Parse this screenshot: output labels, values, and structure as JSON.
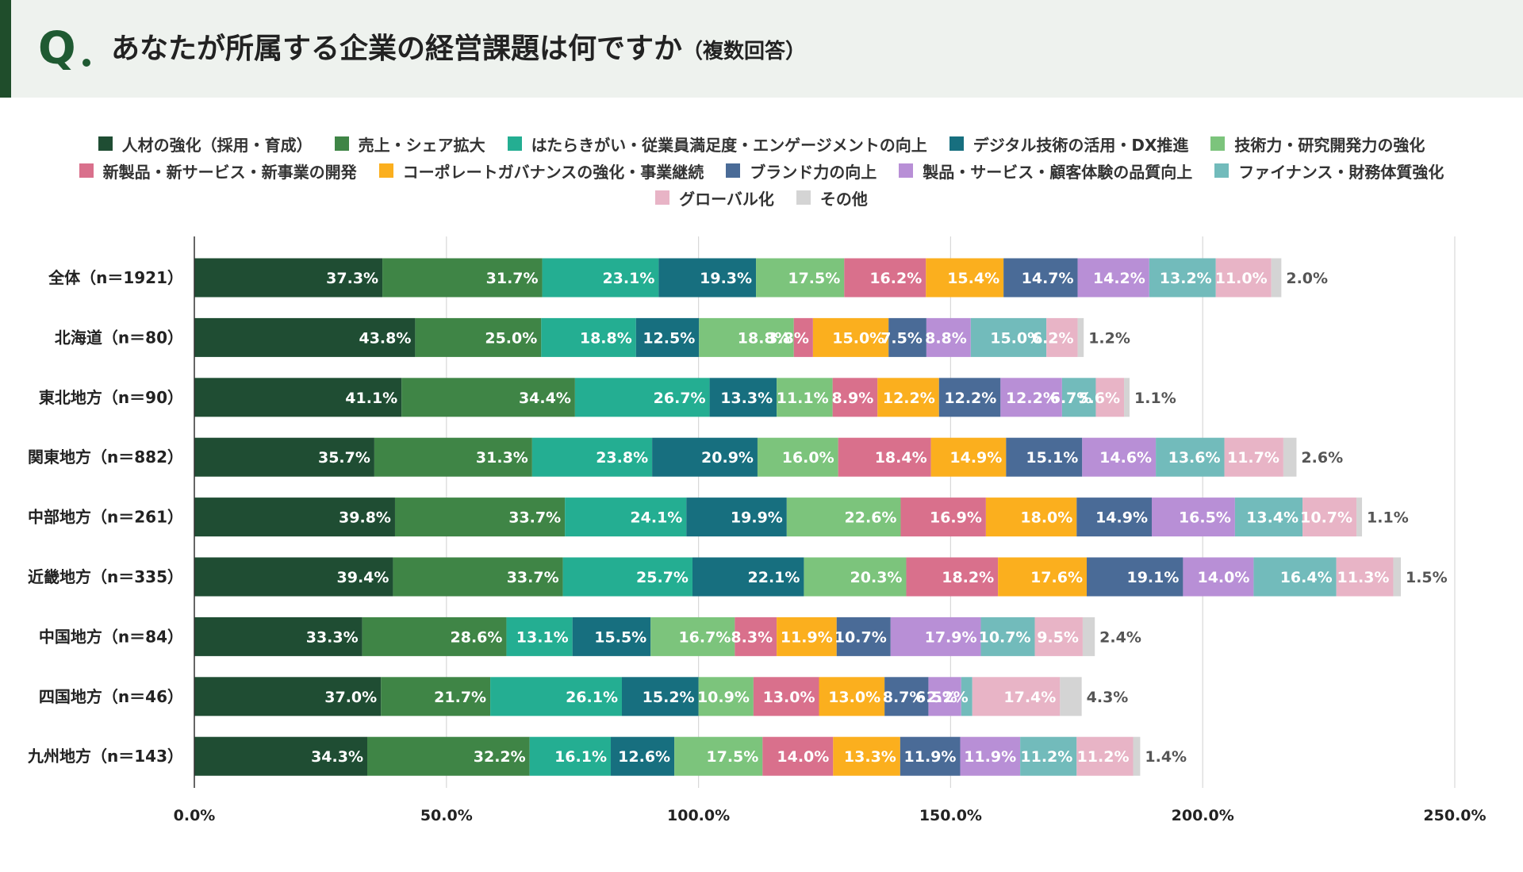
{
  "header": {
    "q_mark": "Q",
    "title": "あなたが所属する企業の経営課題は何ですか",
    "subtitle": "（複数回答）"
  },
  "chart_data": {
    "type": "bar",
    "orientation": "horizontal",
    "stacked": true,
    "title": "あなたが所属する企業の経営課題は何ですか（複数回答）",
    "xlabel": "",
    "ylabel": "",
    "xlim": [
      0,
      250
    ],
    "x_ticks": [
      0,
      50,
      100,
      150,
      200,
      250
    ],
    "x_tick_labels": [
      "0.0%",
      "50.0%",
      "100.0%",
      "150.0%",
      "200.0%",
      "250.0%"
    ],
    "grid": true,
    "legend_position": "top",
    "categories": [
      "全体（n＝1921）",
      "北海道（n＝80）",
      "東北地方（n＝90）",
      "関東地方（n＝882）",
      "中部地方（n＝261）",
      "近畿地方（n＝335）",
      "中国地方（n＝84）",
      "四国地方（n＝46）",
      "九州地方（n＝143）"
    ],
    "series": [
      {
        "name": "人材の強化（採用・育成）",
        "color": "#1f4d33",
        "label_color": "#ffffff",
        "values": [
          37.3,
          43.8,
          41.1,
          35.7,
          39.8,
          39.4,
          33.3,
          37.0,
          34.3
        ]
      },
      {
        "name": "売上・シェア拡大",
        "color": "#3f8546",
        "label_color": "#ffffff",
        "values": [
          31.7,
          25.0,
          34.4,
          31.3,
          33.7,
          33.7,
          28.6,
          21.7,
          32.2
        ]
      },
      {
        "name": "はたらきがい・従業員満足度・エンゲージメントの向上",
        "color": "#24ae92",
        "label_color": "#ffffff",
        "values": [
          23.1,
          18.8,
          26.7,
          23.8,
          24.1,
          25.7,
          13.1,
          26.1,
          16.1
        ]
      },
      {
        "name": "デジタル技術の活用・DX推進",
        "color": "#176f7f",
        "label_color": "#ffffff",
        "values": [
          19.3,
          12.5,
          13.3,
          20.9,
          19.9,
          22.1,
          15.5,
          15.2,
          12.6
        ]
      },
      {
        "name": "技術力・研究開発力の強化",
        "color": "#7cc47c",
        "label_color": "#ffffff",
        "values": [
          17.5,
          18.8,
          11.1,
          16.0,
          22.6,
          20.3,
          16.7,
          10.9,
          17.5
        ]
      },
      {
        "name": "新製品・新サービス・新事業の開発",
        "color": "#d9708c",
        "label_color": "#ffffff",
        "values": [
          16.2,
          3.8,
          8.9,
          18.4,
          16.9,
          18.2,
          8.3,
          13.0,
          14.0
        ]
      },
      {
        "name": "コーポレートガバナンスの強化・事業継続",
        "color": "#fbaf1e",
        "label_color": "#ffffff",
        "values": [
          15.4,
          15.0,
          12.2,
          14.9,
          18.0,
          17.6,
          11.9,
          13.0,
          13.3
        ]
      },
      {
        "name": "ブランド力の向上",
        "color": "#4a6b97",
        "label_color": "#ffffff",
        "values": [
          14.7,
          7.5,
          12.2,
          15.1,
          14.9,
          19.1,
          10.7,
          8.7,
          11.9
        ]
      },
      {
        "name": "製品・サービス・顧客体験の品質向上",
        "color": "#b88fd6",
        "label_color": "#ffffff",
        "values": [
          14.2,
          8.8,
          12.2,
          14.6,
          16.5,
          14.0,
          17.9,
          6.5,
          11.9
        ]
      },
      {
        "name": "ファイナンス・財務体質強化",
        "color": "#72bbbb",
        "label_color": "#ffffff",
        "values": [
          13.2,
          15.0,
          6.7,
          13.6,
          13.4,
          16.4,
          10.7,
          2.2,
          11.2
        ]
      },
      {
        "name": "グローバル化",
        "color": "#e8b4c6",
        "label_color": "#ffffff",
        "values": [
          11.0,
          6.2,
          5.6,
          11.7,
          10.7,
          11.3,
          9.5,
          17.4,
          11.2
        ]
      },
      {
        "name": "その他",
        "color": "#d4d4d4",
        "label_color": "#555555",
        "values": [
          2.0,
          1.2,
          1.1,
          2.6,
          1.1,
          1.5,
          2.4,
          4.3,
          1.4
        ]
      }
    ]
  }
}
